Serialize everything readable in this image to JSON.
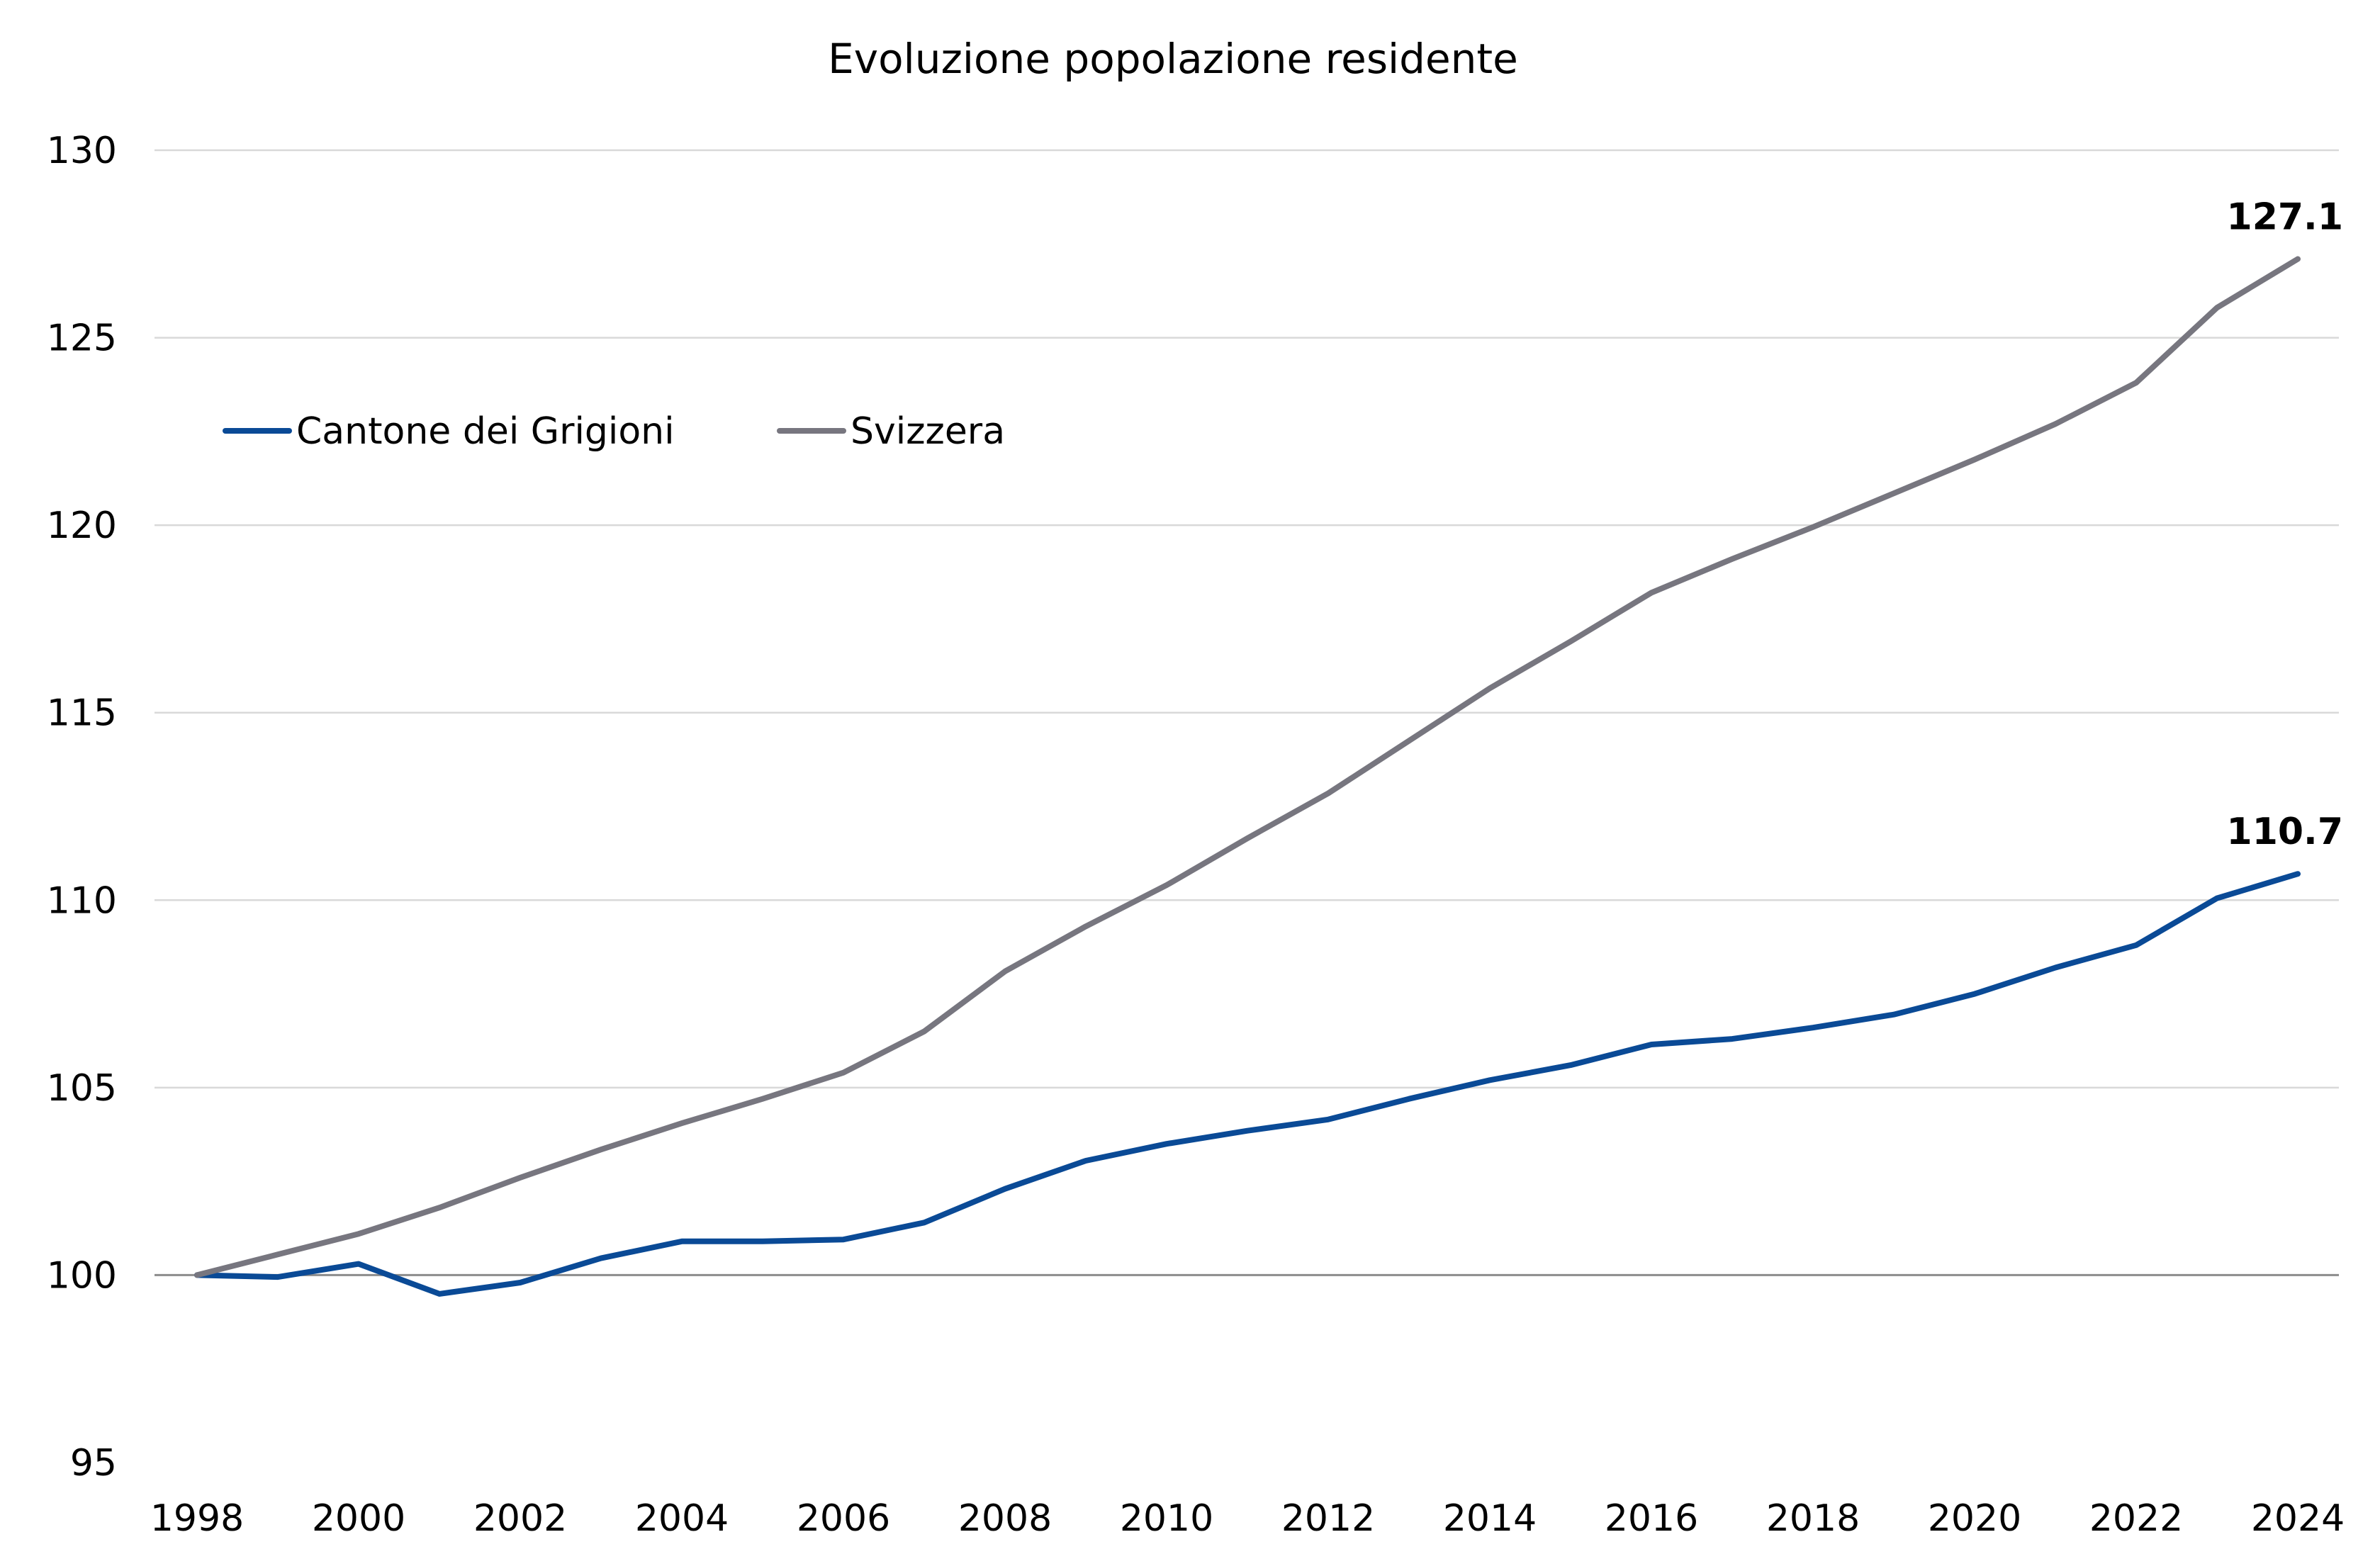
{
  "chart_data": {
    "type": "line",
    "title": "Evoluzione popolazione residente",
    "xlabel": "",
    "ylabel": "",
    "ylim": [
      95,
      130
    ],
    "yticks": [
      95,
      100,
      105,
      110,
      115,
      120,
      125,
      130
    ],
    "xlim": [
      1998,
      2024
    ],
    "xticks": [
      1998,
      2000,
      2002,
      2004,
      2006,
      2008,
      2010,
      2012,
      2014,
      2016,
      2018,
      2020,
      2022,
      2024
    ],
    "x": [
      1998,
      1999,
      2000,
      2001,
      2002,
      2003,
      2004,
      2005,
      2006,
      2007,
      2008,
      2009,
      2010,
      2011,
      2012,
      2013,
      2014,
      2015,
      2016,
      2017,
      2018,
      2019,
      2020,
      2021,
      2022,
      2023,
      2024
    ],
    "grid": true,
    "legend_position": "upper-left",
    "series": [
      {
        "name": "Cantone dei Grigioni",
        "color": "#0a4a96",
        "values": [
          100.0,
          99.95,
          100.3,
          99.5,
          99.8,
          100.45,
          100.9,
          100.9,
          100.95,
          101.4,
          102.3,
          103.05,
          103.5,
          103.85,
          104.15,
          104.7,
          105.2,
          105.6,
          106.15,
          106.3,
          106.6,
          106.95,
          107.5,
          108.2,
          108.8,
          110.05,
          110.7
        ],
        "end_label": "110.7"
      },
      {
        "name": "Svizzera",
        "color": "#77767f",
        "values": [
          100.0,
          100.55,
          101.1,
          101.8,
          102.6,
          103.35,
          104.05,
          104.7,
          105.4,
          106.5,
          108.1,
          109.3,
          110.4,
          111.65,
          112.85,
          114.25,
          115.65,
          116.9,
          118.2,
          119.1,
          119.95,
          120.85,
          121.75,
          122.7,
          123.8,
          125.8,
          127.1
        ],
        "end_label": "127.1"
      }
    ]
  }
}
